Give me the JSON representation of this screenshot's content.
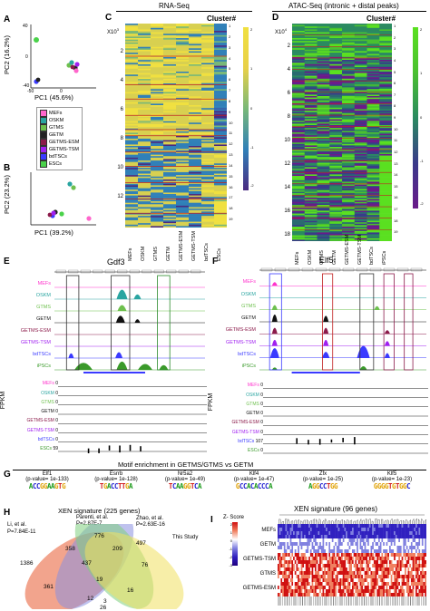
{
  "panelA": {
    "label": "A",
    "xlabel": "PC1 (45.6%)",
    "ylabel": "PC2 (16.2%)",
    "ticks_x": [
      "-50",
      "0"
    ],
    "ticks_y": [
      "40",
      "0",
      "-40"
    ],
    "legend": [
      {
        "name": "MEFs",
        "color": "#ff66cc"
      },
      {
        "name": "OSKM",
        "color": "#2aa5a1"
      },
      {
        "name": "GTMS",
        "color": "#6ec04e"
      },
      {
        "name": "GETM",
        "color": "#222222"
      },
      {
        "name": "GETMS-ESM",
        "color": "#8b1a4a"
      },
      {
        "name": "GETMS-TSM",
        "color": "#a020f0"
      },
      {
        "name": "bdTSCs",
        "color": "#3a3aff"
      },
      {
        "name": "ESCs",
        "color": "#4ad24a"
      }
    ]
  },
  "panelB": {
    "label": "B",
    "xlabel": "PC1 (39.2%)",
    "ylabel": "PC2 (23.2%)"
  },
  "panelC": {
    "label": "C",
    "header": "RNA-Seq",
    "cluster": "Cluster#",
    "exp": "X10",
    "expsup": "3",
    "yticks": [
      "2",
      "4",
      "6",
      "8",
      "10",
      "12"
    ],
    "xlabels": [
      "MEFs",
      "OSKM",
      "GTMS",
      "GETM",
      "GETMS-ESM",
      "GETMS-TSM",
      "bdTSCs",
      "ESCs"
    ],
    "clusters": [
      "1",
      "2",
      "3",
      "4",
      "5",
      "6",
      "7",
      "8",
      "9",
      "10",
      "11",
      "12",
      "13",
      "14",
      "15",
      "16",
      "17",
      "18",
      "19"
    ],
    "scale": [
      "2",
      "1",
      "0",
      "-1",
      "-2"
    ]
  },
  "panelD": {
    "label": "D",
    "header": "ATAC-Seq (intronic + distal peaks)",
    "cluster": "Cluster#",
    "exp": "X10",
    "expsup": "4",
    "yticks": [
      "2",
      "4",
      "6",
      "8",
      "10",
      "12",
      "14",
      "16",
      "18"
    ],
    "xlabels": [
      "MEFs",
      "OSKM",
      "GTMS",
      "GETM",
      "GETMS-ESM",
      "GETMS-TSM",
      "bdTSCs",
      "iPSCs"
    ],
    "clusters": [
      "1",
      "2",
      "3",
      "4",
      "5",
      "6",
      "7",
      "8",
      "9",
      "10",
      "11",
      "12",
      "13",
      "14",
      "15",
      "16",
      "17",
      "18",
      "19"
    ],
    "scale": [
      "2",
      "1",
      "0",
      "-1",
      "-2"
    ]
  },
  "panelE": {
    "label": "E",
    "gene": "Gdf3",
    "tracks": [
      {
        "name": "MEFs",
        "color": "#ff33cc"
      },
      {
        "name": "OSKM",
        "color": "#2aa5a1"
      },
      {
        "name": "GTMS",
        "color": "#6ec04e"
      },
      {
        "name": "GETM",
        "color": "#111111"
      },
      {
        "name": "GETMS-ESM",
        "color": "#8b1a4a"
      },
      {
        "name": "GETMS-TSM",
        "color": "#a020f0"
      },
      {
        "name": "bdTSCs",
        "color": "#3a3aff"
      },
      {
        "name": "iPSCs",
        "color": "#3a9a2a"
      }
    ],
    "fpkm_label": "FPKM",
    "fpkm": [
      {
        "name": "MEFs",
        "value": "0",
        "color": "#ff33cc"
      },
      {
        "name": "OSKM",
        "value": "0",
        "color": "#2aa5a1"
      },
      {
        "name": "GTMS",
        "value": "0",
        "color": "#6ec04e"
      },
      {
        "name": "GETM",
        "value": "0",
        "color": "#111111"
      },
      {
        "name": "GETMS-ESM",
        "value": "0",
        "color": "#8b1a4a"
      },
      {
        "name": "GETMS-TSM",
        "value": "0",
        "color": "#a020f0"
      },
      {
        "name": "bdTSCs",
        "value": "0",
        "color": "#3a3aff"
      },
      {
        "name": "ESCs",
        "value": "59",
        "color": "#3a9a2a"
      }
    ]
  },
  "panelF": {
    "label": "F",
    "gene": "Elf5",
    "tracks": [
      {
        "name": "MEFs",
        "color": "#ff33cc"
      },
      {
        "name": "OSKM",
        "color": "#2aa5a1"
      },
      {
        "name": "GTMS",
        "color": "#6ec04e"
      },
      {
        "name": "GETM",
        "color": "#111111"
      },
      {
        "name": "GETMS-ESM",
        "color": "#8b1a4a"
      },
      {
        "name": "GETMS-TSM",
        "color": "#a020f0"
      },
      {
        "name": "bdTSCs",
        "color": "#3a3aff"
      },
      {
        "name": "iPSCs",
        "color": "#3a9a2a"
      }
    ],
    "fpkm_label": "FPKM",
    "fpkm": [
      {
        "name": "MEFs",
        "value": "0",
        "color": "#ff33cc"
      },
      {
        "name": "OSKM",
        "value": "0",
        "color": "#2aa5a1"
      },
      {
        "name": "GTMS",
        "value": "0",
        "color": "#6ec04e"
      },
      {
        "name": "GETM",
        "value": "0",
        "color": "#111111"
      },
      {
        "name": "GETMS-ESM",
        "value": "0",
        "color": "#8b1a4a"
      },
      {
        "name": "GETMS-TSM",
        "value": "0",
        "color": "#a020f0"
      },
      {
        "name": "bdTSCs",
        "value": "107",
        "color": "#3a3aff"
      },
      {
        "name": "ESCs",
        "value": "0",
        "color": "#3a9a2a"
      }
    ]
  },
  "panelG": {
    "label": "G",
    "title": "Motif enrichment in GETMS/GTMS vs GETM",
    "motifs": [
      {
        "name": "Elf1",
        "p": "(p-value= 1e-133)",
        "seq": "ACCGGAAGTG"
      },
      {
        "name": "Esrrb",
        "p": "(p-value= 1e-128)",
        "seq": "TGACCTTGA"
      },
      {
        "name": "Nr5a2",
        "p": "(p-value= 1e-49)",
        "seq": "TCAAGGTCA"
      },
      {
        "name": "Klf4",
        "p": "(p-value= 1e-47)",
        "seq": "GCCACACCCA"
      },
      {
        "name": "Zfx",
        "p": "(p-value= 1e-25)",
        "seq": "AGGCCTGG"
      },
      {
        "name": "Klf5",
        "p": "(p-value= 1e-23)",
        "seq": "GGGGTGTGGC"
      }
    ]
  },
  "panelH": {
    "label": "H",
    "title": "XEN signature (225 genes)",
    "set1": "Li, et al.",
    "set1p": "P=7.84E-11",
    "set2": "Parenti, et al.",
    "set2p": "P=2.87E-7",
    "set3": "Zhao, et al.",
    "set3p": "P=2.63E-16",
    "set4": "This Study",
    "counts": {
      "a": "1386",
      "b": "358",
      "c": "776",
      "d": "209",
      "e": "497",
      "f": "437",
      "g": "76",
      "h": "361",
      "i": "19",
      "j": "12",
      "k": "3",
      "l": "26",
      "m": "16"
    }
  },
  "panelI": {
    "label": "I",
    "title": "XEN signature (96 genes)",
    "zscore": "Z- Score",
    "scale": [
      "2",
      "1",
      "0",
      "-1",
      "-2",
      "-3"
    ],
    "rows": [
      "MEFs",
      "GETM",
      "GETMS-TSM",
      "GTMS",
      "GETMS-ESM"
    ]
  },
  "header_rna": "RNA-Seq",
  "header_atac": "ATAC-Seq (intronic + distal peaks)"
}
